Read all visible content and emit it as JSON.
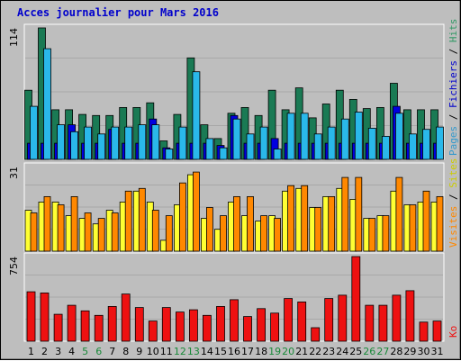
{
  "chart_data": [
    {
      "type": "bar",
      "title": "Acces journalier pour Mars 2016",
      "categories": [
        "1",
        "2",
        "3",
        "4",
        "5",
        "6",
        "7",
        "8",
        "9",
        "10",
        "11",
        "12",
        "13",
        "14",
        "15",
        "16",
        "17",
        "18",
        "19",
        "20",
        "21",
        "22",
        "23",
        "24",
        "25",
        "26",
        "27",
        "28",
        "29",
        "30",
        "31"
      ],
      "weekend_days": [
        "5",
        "6",
        "12",
        "13",
        "19",
        "20",
        "26",
        "27"
      ],
      "ymax_label": "114",
      "ylim": [
        0,
        114
      ],
      "series": [
        {
          "name": "Hits",
          "color": "#1a7a54",
          "values": [
            60,
            114,
            43,
            43,
            39,
            38,
            38,
            45,
            45,
            49,
            16,
            39,
            88,
            30,
            18,
            40,
            45,
            38,
            60,
            43,
            62,
            36,
            48,
            60,
            52,
            44,
            45,
            66,
            43,
            43,
            43
          ]
        },
        {
          "name": "Fichiers",
          "color": "#0000e0",
          "values": [
            14,
            14,
            14,
            30,
            14,
            14,
            26,
            14,
            14,
            35,
            10,
            14,
            14,
            14,
            12,
            38,
            14,
            14,
            18,
            14,
            14,
            14,
            14,
            14,
            14,
            14,
            14,
            46,
            14,
            14,
            14
          ]
        },
        {
          "name": "Pages",
          "color": "#2ab8ea",
          "values": [
            46,
            96,
            30,
            24,
            28,
            22,
            28,
            28,
            30,
            30,
            9,
            28,
            76,
            18,
            10,
            35,
            22,
            28,
            9,
            40,
            40,
            22,
            28,
            35,
            41,
            27,
            20,
            40,
            22,
            26,
            28
          ]
        }
      ]
    },
    {
      "type": "bar",
      "ymax_label": "31",
      "ylim": [
        0,
        31
      ],
      "series": [
        {
          "name": "Sites",
          "color": "#ffff33",
          "values": [
            15,
            18,
            18,
            13,
            12,
            10,
            15,
            18,
            22,
            18,
            4,
            17,
            28,
            12,
            8,
            18,
            13,
            11,
            13,
            22,
            23,
            16,
            20,
            23,
            19,
            12,
            13,
            22,
            17,
            18,
            18
          ]
        },
        {
          "name": "Visites",
          "color": "#ff8800",
          "values": [
            14,
            20,
            17,
            20,
            14,
            12,
            14,
            22,
            23,
            15,
            13,
            25,
            29,
            16,
            13,
            20,
            20,
            13,
            12,
            24,
            24,
            16,
            20,
            27,
            27,
            12,
            13,
            27,
            17,
            22,
            20
          ]
        }
      ]
    },
    {
      "type": "bar",
      "ymax_label": "754",
      "ylim": [
        0,
        754
      ],
      "series": [
        {
          "name": "Ko",
          "color": "#ee1111",
          "values": [
            440,
            430,
            240,
            320,
            270,
            230,
            310,
            420,
            300,
            180,
            300,
            260,
            280,
            230,
            310,
            370,
            220,
            290,
            250,
            380,
            350,
            120,
            380,
            410,
            754,
            320,
            320,
            410,
            450,
            170,
            180
          ]
        }
      ]
    }
  ]
}
